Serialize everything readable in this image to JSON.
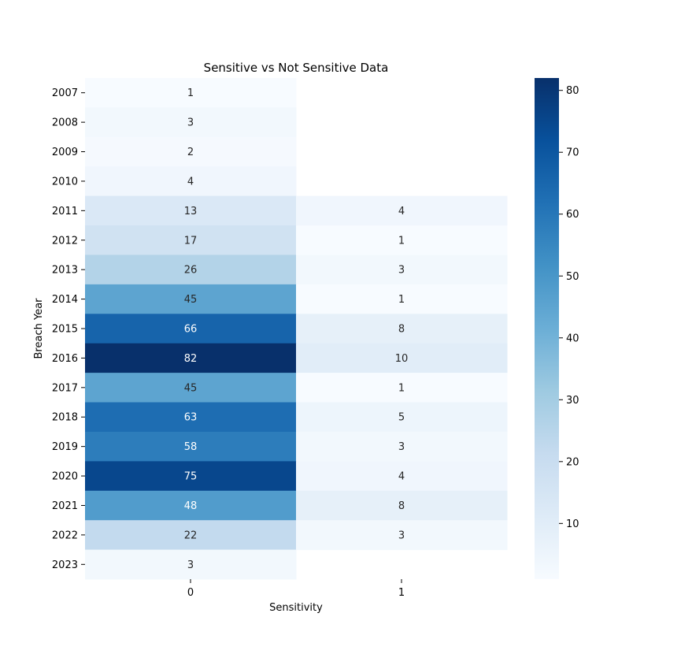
{
  "chart_data": {
    "type": "heatmap",
    "title": "Sensitive vs Not Sensitive Data",
    "xlabel": "Sensitivity",
    "ylabel": "Breach Year",
    "x_categories": [
      "0",
      "1"
    ],
    "y_categories": [
      "2007",
      "2008",
      "2009",
      "2010",
      "2011",
      "2012",
      "2013",
      "2014",
      "2015",
      "2016",
      "2017",
      "2018",
      "2019",
      "2020",
      "2021",
      "2022",
      "2023"
    ],
    "values": [
      [
        1,
        null
      ],
      [
        3,
        null
      ],
      [
        2,
        null
      ],
      [
        4,
        null
      ],
      [
        13,
        4
      ],
      [
        17,
        1
      ],
      [
        26,
        3
      ],
      [
        45,
        1
      ],
      [
        66,
        8
      ],
      [
        82,
        10
      ],
      [
        45,
        1
      ],
      [
        63,
        5
      ],
      [
        58,
        3
      ],
      [
        75,
        4
      ],
      [
        48,
        8
      ],
      [
        22,
        3
      ],
      [
        3,
        null
      ]
    ],
    "colormap": "Blues",
    "color_range": [
      1,
      82
    ],
    "colorbar": {
      "ticks": [
        10,
        20,
        30,
        40,
        50,
        60,
        70,
        80
      ],
      "placement": "right"
    },
    "annotations": true,
    "grid": false
  }
}
